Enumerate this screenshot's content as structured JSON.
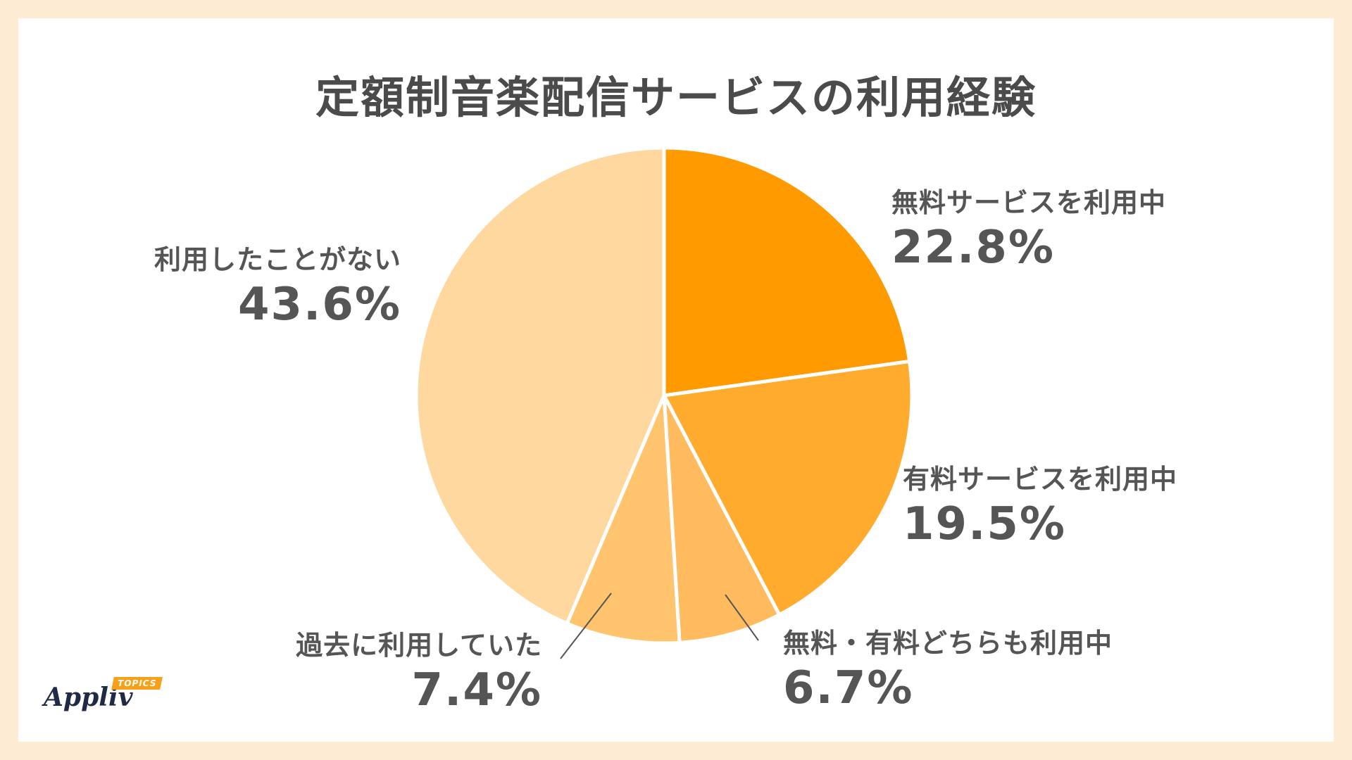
{
  "chart_data": {
    "type": "pie",
    "title": "定額制音楽配信サービスの利用経験",
    "series": [
      {
        "name": "無料サービスを利用中",
        "value": 22.8,
        "label": "22.8%",
        "color": "#ff9a00"
      },
      {
        "name": "有料サービスを利用中",
        "value": 19.5,
        "label": "19.5%",
        "color": "#ffab2e"
      },
      {
        "name": "無料・有料どちらも利用中",
        "value": 6.7,
        "label": "6.7%",
        "color": "#ffbb5e"
      },
      {
        "name": "過去に利用していた",
        "value": 7.4,
        "label": "7.4%",
        "color": "#ffc46d"
      },
      {
        "name": "利用したことがない",
        "value": 43.6,
        "label": "43.6%",
        "color": "#fed89f"
      }
    ],
    "start_angle": "12 o'clock",
    "direction": "clockwise",
    "legend": "none"
  },
  "brand": {
    "logo_word": "Appliv",
    "logo_tag": "TOPICS",
    "accent": "#f7a11a"
  }
}
